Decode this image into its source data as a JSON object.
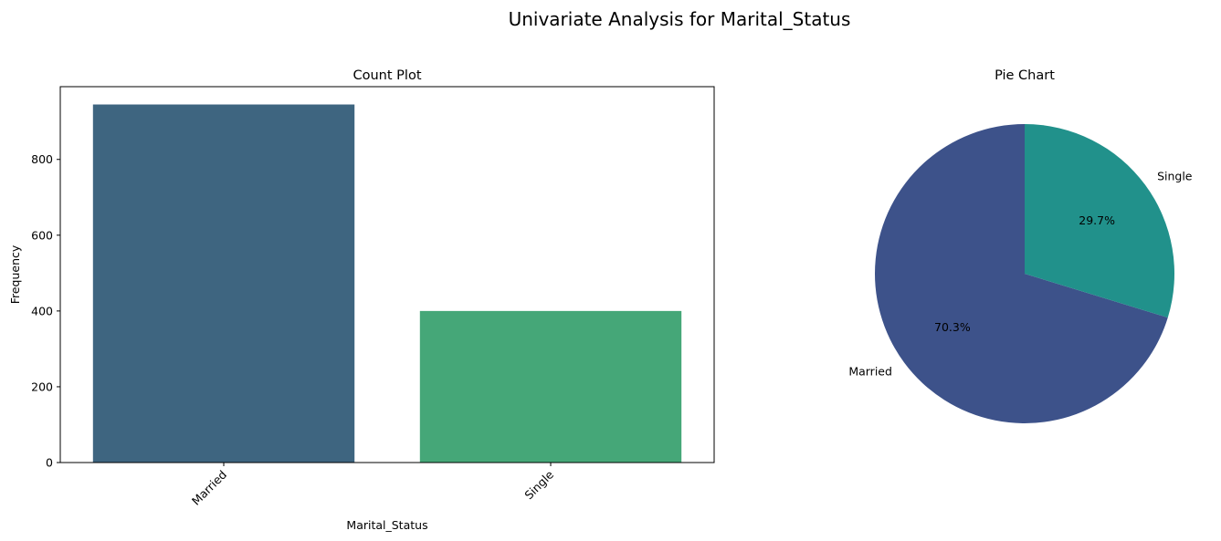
{
  "figure": {
    "suptitle": "Univariate Analysis for Marital_Status"
  },
  "chart_data": [
    {
      "type": "bar",
      "title": "Count Plot",
      "xlabel": "Marital_Status",
      "ylabel": "Frequency",
      "categories": [
        "Married",
        "Single"
      ],
      "values": [
        945,
        400
      ],
      "colors": [
        "#3e6580",
        "#45a778"
      ],
      "ylim": [
        0,
        992
      ],
      "yticks": [
        0,
        200,
        400,
        600,
        800
      ],
      "xtick_rotation": 45,
      "grid": false,
      "legend": "none"
    },
    {
      "type": "pie",
      "title": "Pie Chart",
      "labels": [
        "Married",
        "Single"
      ],
      "values": [
        945,
        400
      ],
      "percent_labels": [
        "70.3%",
        "29.7%"
      ],
      "colors": [
        "#3d528a",
        "#21918b"
      ],
      "start_angle_deg": 90,
      "direction": "counterclockwise",
      "legend": "none"
    }
  ]
}
